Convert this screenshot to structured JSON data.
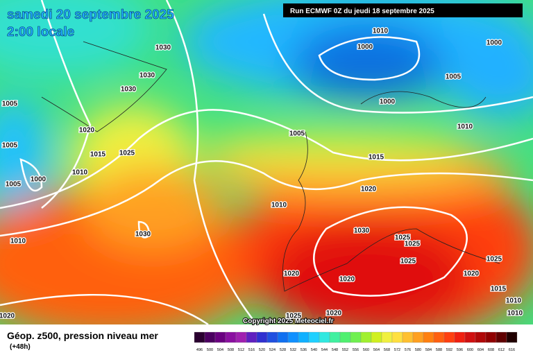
{
  "header": {
    "date": "samedi 20 septembre 2025",
    "time": "2:00 locale",
    "run": "Run ECMWF 0Z du jeudi 18 septembre 2025"
  },
  "isobar_labels": [
    "1010",
    "1000",
    "1000",
    "1030",
    "1030",
    "1030",
    "1005",
    "1005",
    "1000",
    "1010",
    "1005",
    "1020",
    "1015",
    "1025",
    "1010",
    "1015",
    "1005",
    "1000",
    "1005",
    "1020",
    "1010",
    "1030",
    "1030",
    "1025",
    "1025",
    "1025",
    "1025",
    "1010",
    "1020",
    "1020",
    "1020",
    "1015",
    "1010",
    "1010",
    "1020",
    "1020",
    "1025"
  ],
  "copyright": "Copyright 2025 Meteociel.fr",
  "footer": {
    "title": "Géop. z500, pression niveau mer",
    "lead": "(+48h)"
  },
  "legend": {
    "values": [
      496,
      500,
      504,
      508,
      512,
      516,
      520,
      524,
      528,
      532,
      536,
      540,
      544,
      548,
      552,
      556,
      560,
      564,
      568,
      572,
      576,
      580,
      584,
      588,
      592,
      596,
      600,
      604,
      608,
      612,
      616
    ],
    "colors": [
      "#2a0030",
      "#4b0060",
      "#6a0080",
      "#8a10a0",
      "#a020b0",
      "#6020c0",
      "#3030d0",
      "#2050e0",
      "#1070f0",
      "#1090ff",
      "#10b0ff",
      "#20d0ff",
      "#30e8e0",
      "#40f0a0",
      "#50f070",
      "#70f050",
      "#a0f030",
      "#d0f020",
      "#f0f040",
      "#ffe040",
      "#ffc030",
      "#ffa020",
      "#ff8010",
      "#ff6010",
      "#ff4010",
      "#f02010",
      "#d01010",
      "#b00808",
      "#900000",
      "#600000",
      "#200000"
    ]
  }
}
